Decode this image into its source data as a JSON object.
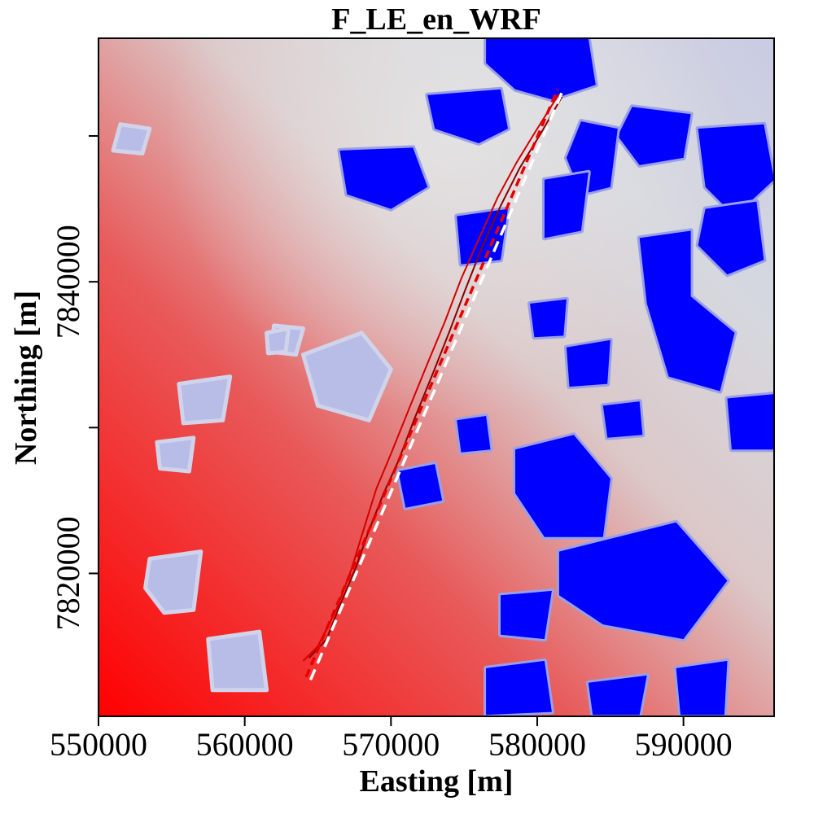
{
  "chart_data": {
    "type": "heatmap",
    "title": "F_LE_en_WRF",
    "xlabel": "Easting [m]",
    "ylabel": "Northing [m]",
    "xlim": [
      550000,
      596200
    ],
    "ylim": [
      7810200,
      7856700
    ],
    "x_ticks": [
      550000,
      560000,
      570000,
      580000,
      590000
    ],
    "x_tick_labels": [
      "550000",
      "560000",
      "570000",
      "580000",
      "590000"
    ],
    "y_ticks": [
      7820000,
      7830000,
      7840000,
      7850000
    ],
    "y_tick_labels": [
      "7820000",
      "",
      "7840000",
      ""
    ],
    "colormap": [
      "#ff0000",
      "#d9d9d9",
      "#0000ff"
    ],
    "background_gradient": {
      "low_corner": "bottom-left",
      "high_corner": "top-right"
    },
    "blue_patches": [
      [
        [
          576500,
          7856700
        ],
        [
          583500,
          7856700
        ],
        [
          584000,
          7853500
        ],
        [
          581000,
          7852500
        ],
        [
          578500,
          7853200
        ],
        [
          576500,
          7855000
        ]
      ],
      [
        [
          572500,
          7852800
        ],
        [
          577500,
          7853200
        ],
        [
          578000,
          7850500
        ],
        [
          576000,
          7849500
        ],
        [
          573000,
          7850500
        ]
      ],
      [
        [
          586500,
          7852000
        ],
        [
          590500,
          7851500
        ],
        [
          590000,
          7848500
        ],
        [
          587000,
          7848000
        ],
        [
          585500,
          7850000
        ]
      ],
      [
        [
          591000,
          7850500
        ],
        [
          595500,
          7850800
        ],
        [
          596200,
          7847000
        ],
        [
          593500,
          7844500
        ],
        [
          591500,
          7846500
        ]
      ],
      [
        [
          583000,
          7851000
        ],
        [
          585500,
          7850500
        ],
        [
          585000,
          7846500
        ],
        [
          583000,
          7846000
        ],
        [
          582000,
          7848500
        ]
      ],
      [
        [
          566500,
          7849000
        ],
        [
          571500,
          7849200
        ],
        [
          572500,
          7846500
        ],
        [
          570000,
          7845000
        ],
        [
          567000,
          7846000
        ]
      ],
      [
        [
          587000,
          7843000
        ],
        [
          590500,
          7843500
        ],
        [
          590500,
          7839000
        ],
        [
          593500,
          7836500
        ],
        [
          592500,
          7832500
        ],
        [
          589000,
          7833500
        ],
        [
          587500,
          7838500
        ]
      ],
      [
        [
          591500,
          7845000
        ],
        [
          595000,
          7845500
        ],
        [
          595500,
          7841500
        ],
        [
          593000,
          7840500
        ],
        [
          591000,
          7842500
        ]
      ],
      [
        [
          580500,
          7847000
        ],
        [
          583500,
          7847500
        ],
        [
          583000,
          7843500
        ],
        [
          580500,
          7843000
        ]
      ],
      [
        [
          578500,
          7828500
        ],
        [
          582500,
          7829500
        ],
        [
          585000,
          7826500
        ],
        [
          584500,
          7822500
        ],
        [
          580500,
          7822500
        ],
        [
          578500,
          7825500
        ]
      ],
      [
        [
          581500,
          7821500
        ],
        [
          589500,
          7823500
        ],
        [
          593000,
          7819500
        ],
        [
          590000,
          7815500
        ],
        [
          584500,
          7816500
        ],
        [
          581500,
          7818500
        ]
      ],
      [
        [
          570500,
          7827000
        ],
        [
          573000,
          7827500
        ],
        [
          573500,
          7825000
        ],
        [
          571000,
          7824500
        ]
      ],
      [
        [
          574500,
          7830500
        ],
        [
          576500,
          7830800
        ],
        [
          576800,
          7828500
        ],
        [
          574800,
          7828300
        ]
      ],
      [
        [
          584500,
          7831500
        ],
        [
          587000,
          7831800
        ],
        [
          587200,
          7829500
        ],
        [
          584800,
          7829300
        ]
      ],
      [
        [
          593000,
          7832000
        ],
        [
          596200,
          7832300
        ],
        [
          596200,
          7828500
        ],
        [
          593300,
          7828500
        ]
      ],
      [
        [
          577500,
          7818500
        ],
        [
          581000,
          7818800
        ],
        [
          580500,
          7815500
        ],
        [
          577500,
          7815800
        ]
      ],
      [
        [
          576500,
          7813500
        ],
        [
          580500,
          7814000
        ],
        [
          581000,
          7810500
        ],
        [
          576500,
          7810300
        ]
      ],
      [
        [
          583500,
          7812500
        ],
        [
          587500,
          7813000
        ],
        [
          587000,
          7810300
        ],
        [
          583800,
          7810300
        ]
      ],
      [
        [
          589500,
          7813500
        ],
        [
          593000,
          7814000
        ],
        [
          592800,
          7810300
        ],
        [
          589800,
          7810300
        ]
      ],
      [
        [
          574500,
          7844500
        ],
        [
          578000,
          7845000
        ],
        [
          577500,
          7841500
        ],
        [
          574800,
          7841200
        ]
      ],
      [
        [
          582000,
          7835500
        ],
        [
          585000,
          7836000
        ],
        [
          584800,
          7833000
        ],
        [
          582200,
          7832800
        ]
      ],
      [
        [
          579500,
          7838500
        ],
        [
          582000,
          7838800
        ],
        [
          581800,
          7836300
        ],
        [
          579800,
          7836200
        ]
      ]
    ],
    "light_blue_patches": [
      [
        [
          551500,
          7850800
        ],
        [
          553500,
          7850500
        ],
        [
          553000,
          7848800
        ],
        [
          551000,
          7849000
        ]
      ],
      [
        [
          562000,
          7837000
        ],
        [
          564000,
          7836800
        ],
        [
          563500,
          7835000
        ],
        [
          561800,
          7835200
        ]
      ],
      [
        [
          564000,
          7835000
        ],
        [
          568000,
          7836500
        ],
        [
          570000,
          7834000
        ],
        [
          568500,
          7830500
        ],
        [
          565000,
          7831500
        ]
      ],
      [
        [
          555500,
          7833000
        ],
        [
          559000,
          7833500
        ],
        [
          558500,
          7830500
        ],
        [
          555800,
          7830300
        ]
      ],
      [
        [
          554000,
          7829000
        ],
        [
          556500,
          7829300
        ],
        [
          556200,
          7827000
        ],
        [
          554200,
          7827200
        ]
      ],
      [
        [
          553500,
          7821000
        ],
        [
          557000,
          7821500
        ],
        [
          556500,
          7817500
        ],
        [
          554500,
          7817300
        ],
        [
          553200,
          7819000
        ]
      ],
      [
        [
          557500,
          7815500
        ],
        [
          561000,
          7816000
        ],
        [
          561500,
          7812000
        ],
        [
          557800,
          7812000
        ]
      ],
      [
        [
          561500,
          7836500
        ],
        [
          563000,
          7836800
        ],
        [
          562800,
          7835200
        ],
        [
          561600,
          7835100
        ]
      ]
    ],
    "contours": [
      {
        "name": "",
        "color": "#d40000",
        "points": [
          [
            564000,
            7814000
          ],
          [
            565000,
            7815000
          ],
          [
            566300,
            7817600
          ],
          [
            567300,
            7820300
          ],
          [
            568000,
            7822600
          ],
          [
            569000,
            7825800
          ],
          [
            570000,
            7828200
          ],
          [
            571200,
            7831200
          ],
          [
            572500,
            7834400
          ],
          [
            573700,
            7837300
          ],
          [
            574800,
            7840200
          ],
          [
            575900,
            7842700
          ],
          [
            577300,
            7845800
          ],
          [
            578600,
            7848200
          ],
          [
            580000,
            7850500
          ],
          [
            581500,
            7852900
          ]
        ]
      },
      {
        "name": "",
        "color": "#8b0000",
        "points": [
          [
            564400,
            7814200
          ],
          [
            565600,
            7815500
          ],
          [
            566500,
            7817800
          ],
          [
            567600,
            7820400
          ],
          [
            568400,
            7822700
          ],
          [
            569500,
            7825500
          ],
          [
            570500,
            7827700
          ],
          [
            571600,
            7830600
          ],
          [
            572900,
            7833800
          ],
          [
            574000,
            7836600
          ],
          [
            575100,
            7839500
          ],
          [
            576200,
            7842300
          ],
          [
            577500,
            7845200
          ],
          [
            578800,
            7847800
          ],
          [
            580200,
            7850100
          ],
          [
            581700,
            7852700
          ]
        ]
      },
      {
        "name": "",
        "color": "#ffffff",
        "dashed": true,
        "points": [
          [
            564500,
            7812700
          ],
          [
            581700,
            7853000
          ]
        ]
      },
      {
        "name": "",
        "color": "#e60000",
        "dashed": true,
        "points": [
          [
            564200,
            7812900
          ],
          [
            581400,
            7853200
          ]
        ]
      }
    ]
  }
}
